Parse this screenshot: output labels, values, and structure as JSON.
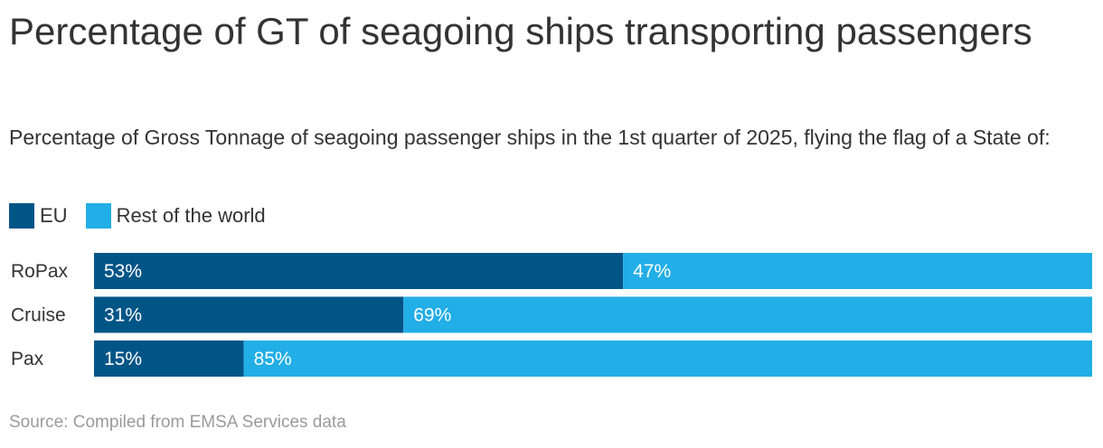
{
  "title": "Percentage of GT of seagoing ships transporting passengers",
  "subtitle": "Percentage of Gross Tonnage of seagoing passenger ships in the 1st quarter of 2025, flying the flag of a State of:",
  "source": "Source: Compiled from EMSA Services data",
  "colors": {
    "eu": "#005587",
    "rest": "#22aee6"
  },
  "legend": [
    {
      "label": "EU",
      "color": "#005587"
    },
    {
      "label": "Rest of the world",
      "color": "#22aee6"
    }
  ],
  "chart_data": {
    "type": "bar",
    "orientation": "horizontal",
    "stacked": true,
    "categories": [
      "RoPax",
      "Cruise",
      "Pax"
    ],
    "series": [
      {
        "name": "EU",
        "values": [
          53,
          31,
          15
        ],
        "labels": [
          "53%",
          "31%",
          "15%"
        ]
      },
      {
        "name": "Rest of the world",
        "values": [
          47,
          69,
          85
        ],
        "labels": [
          "47%",
          "69%",
          "85%"
        ]
      }
    ],
    "xlim": [
      0,
      100
    ],
    "unit": "%"
  }
}
